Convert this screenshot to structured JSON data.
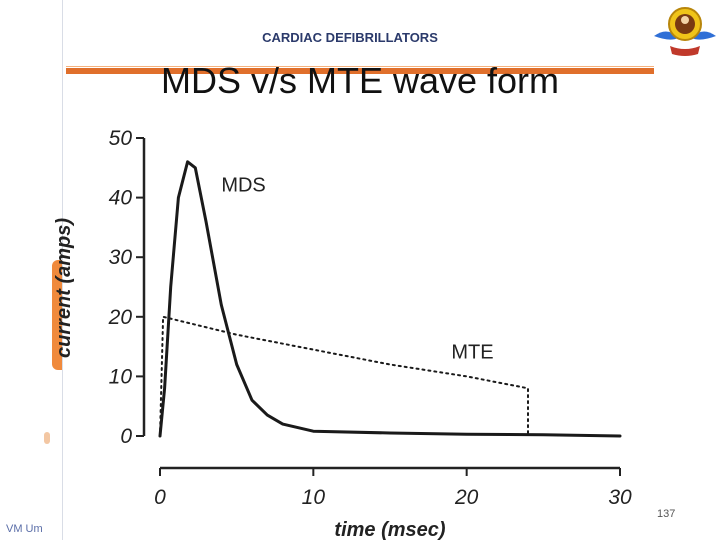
{
  "header": {
    "subtitle": "CARDIAC DEFIBRILLATORS",
    "page_number": "137",
    "footer_left": "VM Um"
  },
  "slide": {
    "title": "MDS v/s MTE wave form"
  },
  "colors": {
    "accent": "#e06f2b",
    "text_blue": "#2b3a6b"
  },
  "chart_data": {
    "type": "line",
    "title": "MDS v/s MTE wave form",
    "xlabel": "time (msec)",
    "ylabel": "current (amps)",
    "xlim": [
      0,
      30
    ],
    "ylim": [
      0,
      50
    ],
    "x_ticks": [
      "0",
      "10",
      "20",
      "30"
    ],
    "y_ticks": [
      "0",
      "10",
      "20",
      "30",
      "40",
      "50"
    ],
    "series": [
      {
        "name": "MDS",
        "style": "solid",
        "points": [
          [
            0,
            0
          ],
          [
            0.3,
            8
          ],
          [
            0.7,
            25
          ],
          [
            1.2,
            40
          ],
          [
            1.8,
            46
          ],
          [
            2.3,
            45
          ],
          [
            3,
            36
          ],
          [
            4,
            22
          ],
          [
            5,
            12
          ],
          [
            6,
            6
          ],
          [
            7,
            3.5
          ],
          [
            8,
            2
          ],
          [
            10,
            0.8
          ],
          [
            15,
            0.5
          ],
          [
            20,
            0.3
          ],
          [
            25,
            0.2
          ],
          [
            30,
            0
          ]
        ]
      },
      {
        "name": "MTE",
        "style": "dotted",
        "points": [
          [
            0,
            0
          ],
          [
            0.2,
            20
          ],
          [
            5,
            17
          ],
          [
            10,
            14.5
          ],
          [
            15,
            12
          ],
          [
            20,
            10
          ],
          [
            24,
            8
          ],
          [
            24,
            1.5
          ],
          [
            24,
            0.5
          ]
        ]
      }
    ],
    "labels": [
      {
        "text": "MDS",
        "x": 4,
        "y": 41
      },
      {
        "text": "MTE",
        "x": 19,
        "y": 13
      }
    ]
  }
}
